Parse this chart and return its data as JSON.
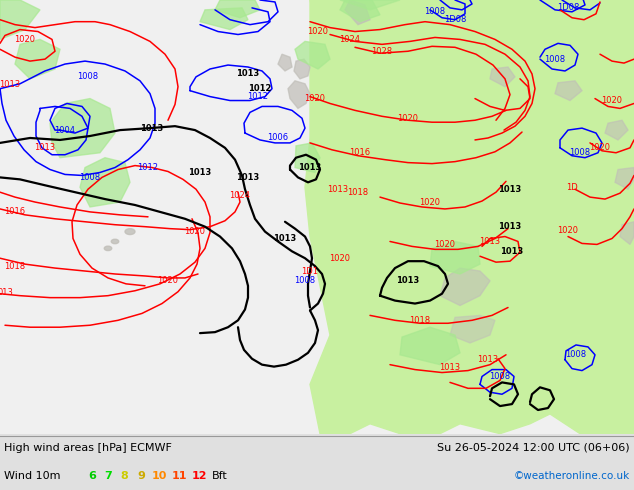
{
  "title_left": "High wind areas [hPa] ECMWF",
  "title_right": "Su 26-05-2024 12:00 UTC (06+06)",
  "legend_label": "Wind 10m",
  "wind_numbers": [
    "6",
    "7",
    "8",
    "9",
    "10",
    "11",
    "12"
  ],
  "wind_colors": [
    "#00cc00",
    "#00dd00",
    "#cccc00",
    "#ccaa00",
    "#ff8800",
    "#ff4400",
    "#ff0000"
  ],
  "wind_suffix": "Bft",
  "copyright": "©weatheronline.co.uk",
  "copyright_color": "#0066cc",
  "fig_width": 6.34,
  "fig_height": 4.9,
  "dpi": 100,
  "text_color": "#000000",
  "bottom_bar_color": "#e0e0e0",
  "sea_color": "#f0f0f0",
  "land_green_color": "#c8f0a0",
  "land_gray_color": "#c0beb8",
  "high_wind_green": "#a8e890"
}
